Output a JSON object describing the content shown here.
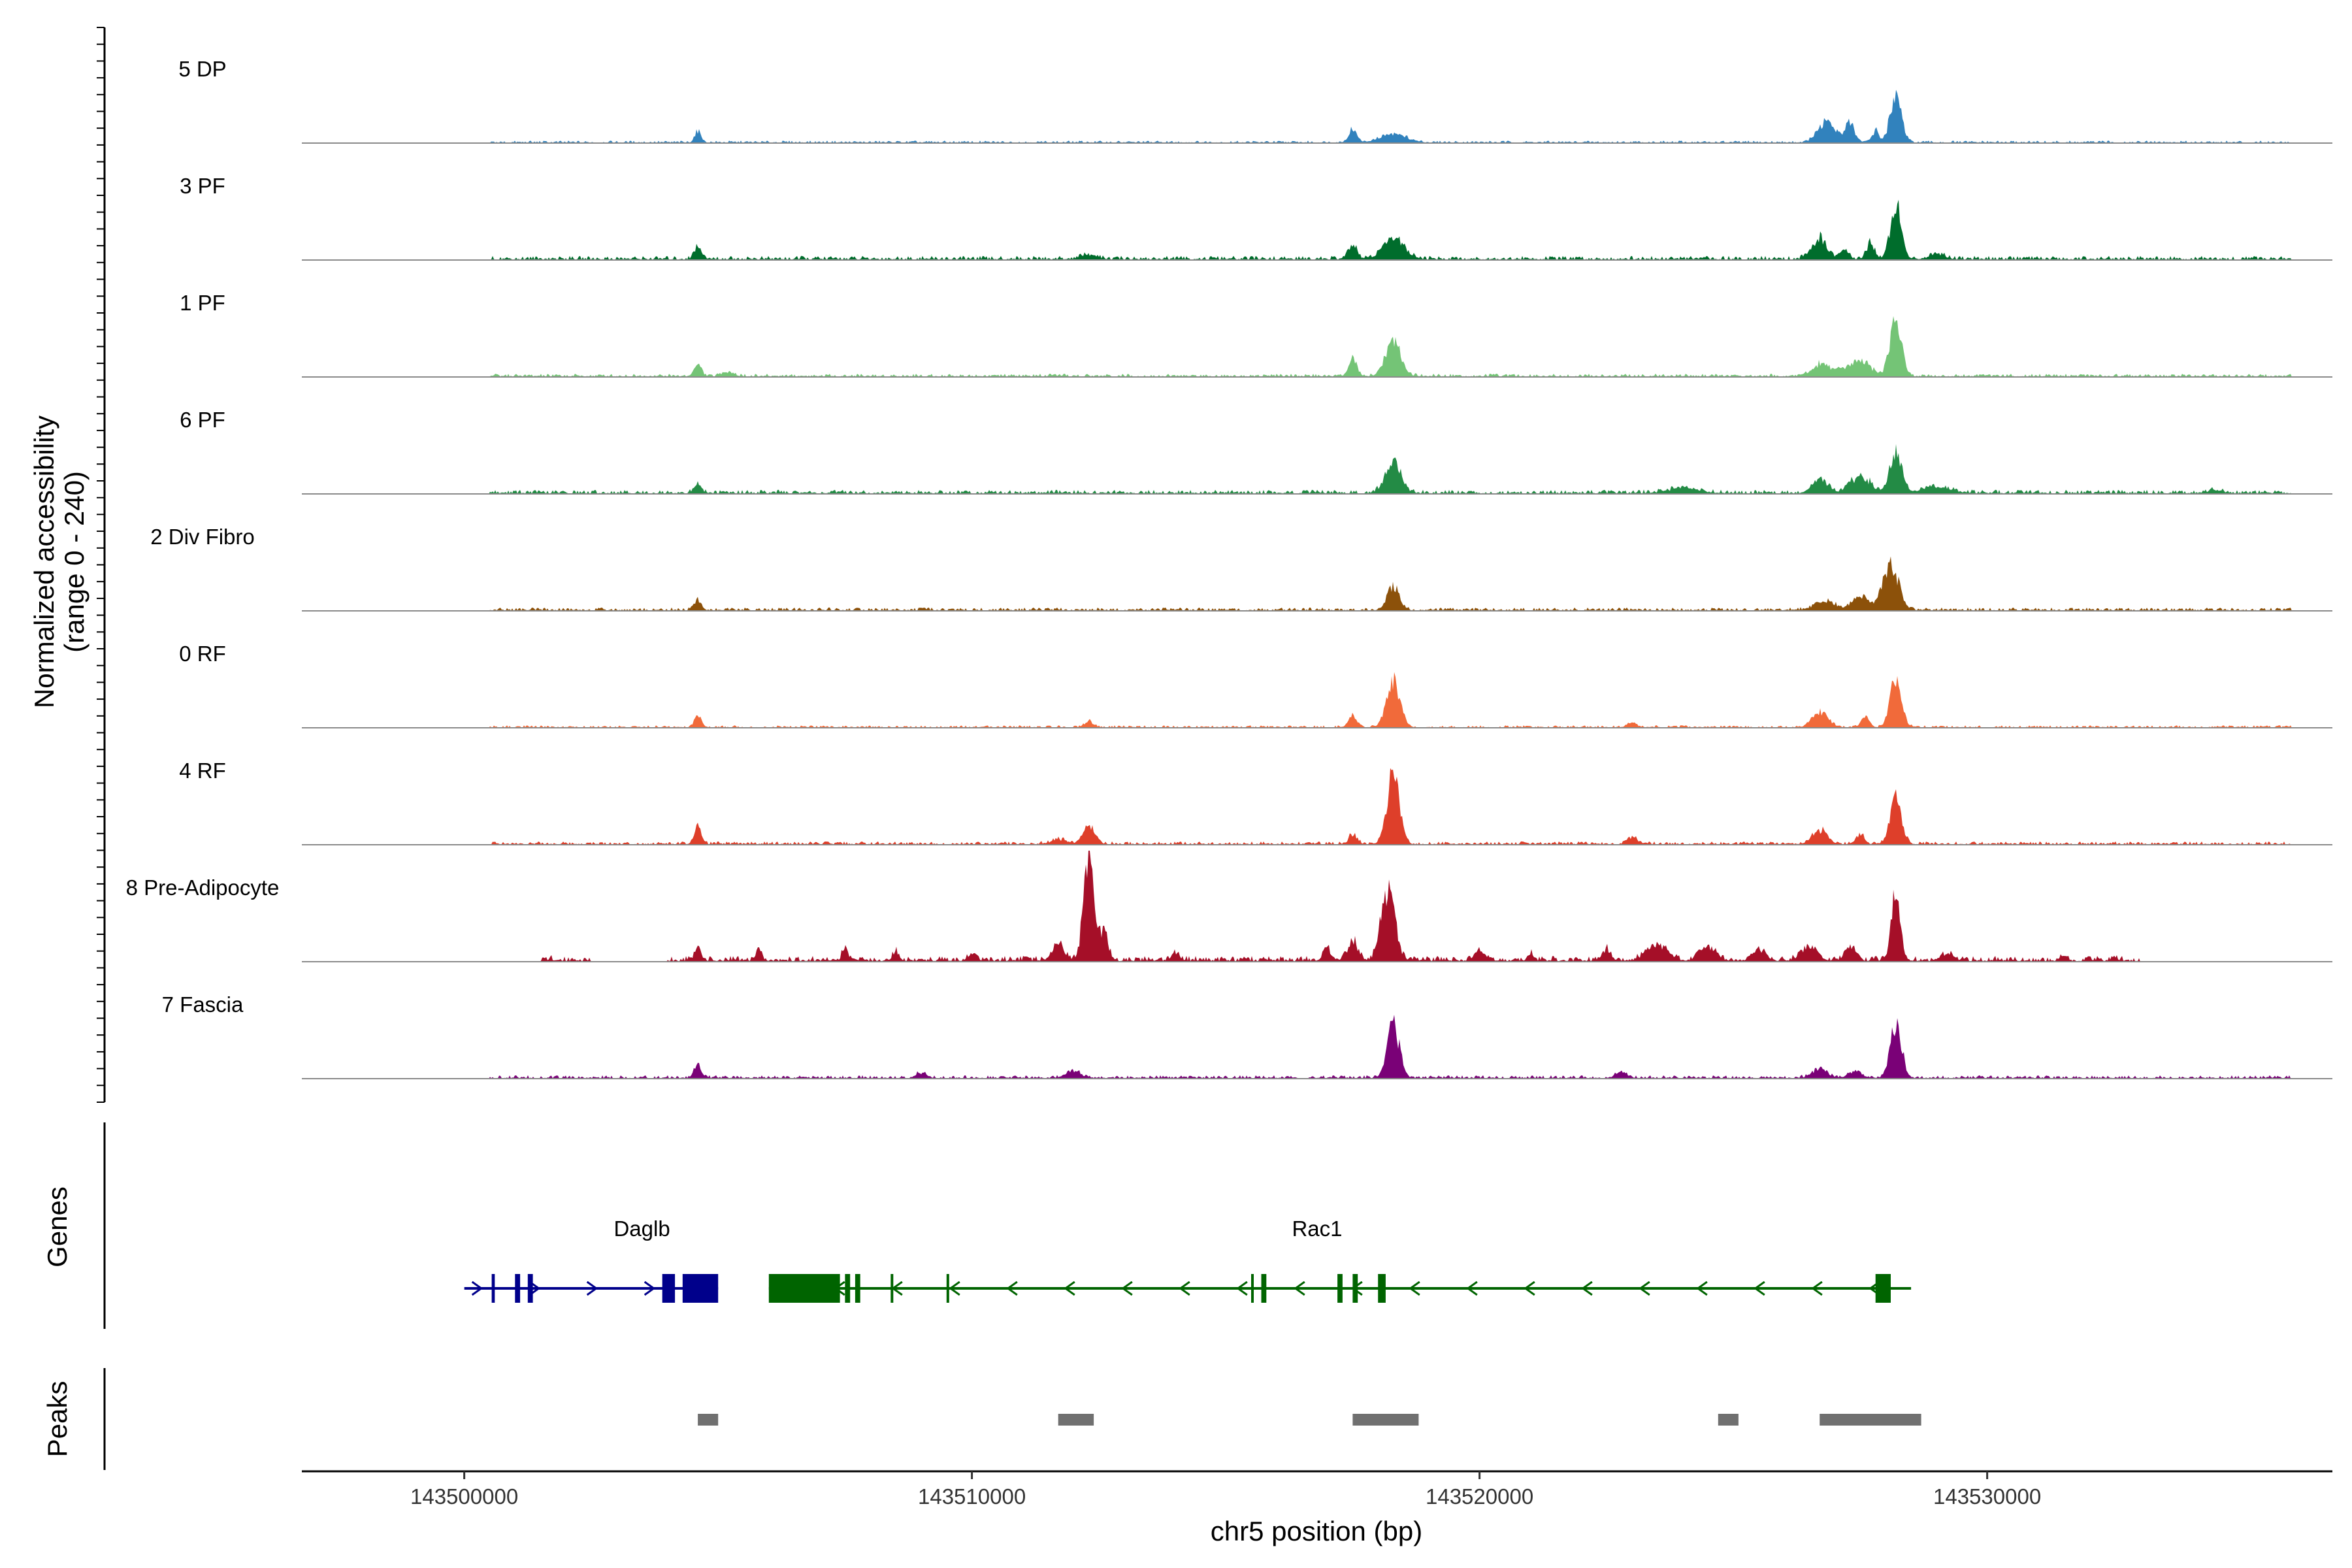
{
  "chart_data": {
    "type": "area",
    "title": "",
    "ylabel": "Normalized accessibility\n(range 0 - 240)",
    "xlabel": "chr5 position (bp)",
    "xlim": [
      143496800,
      143536800
    ],
    "ylim": [
      0,
      240
    ],
    "x_ticks": [
      143500000,
      143510000,
      143520000,
      143530000
    ],
    "x_tick_labels": [
      "143500000",
      "143510000",
      "143520000",
      "143530000"
    ],
    "genes_label": "Genes",
    "peaks_label": "Peaks",
    "tracks": [
      {
        "name": "5 DP",
        "color": "#3182bd",
        "background": [
          [
            143500500,
            143512000,
            3
          ],
          [
            143512000,
            143536000,
            3
          ]
        ],
        "peaks": [
          [
            143504600,
            24,
            60
          ],
          [
            143517500,
            28,
            80
          ],
          [
            143518300,
            18,
            250
          ],
          [
            143526800,
            30,
            150
          ],
          [
            143527300,
            38,
            80
          ],
          [
            143527800,
            25,
            60
          ],
          [
            143528200,
            100,
            110
          ],
          [
            143527000,
            15,
            250
          ]
        ]
      },
      {
        "name": "3 PF",
        "color": "#006d2c",
        "background": [
          [
            143500500,
            143536000,
            5
          ]
        ],
        "peaks": [
          [
            143504600,
            28,
            70
          ],
          [
            143512300,
            10,
            150
          ],
          [
            143517500,
            35,
            80
          ],
          [
            143518300,
            45,
            200
          ],
          [
            143526700,
            45,
            150
          ],
          [
            143527200,
            20,
            80
          ],
          [
            143527700,
            35,
            80
          ],
          [
            143528200,
            115,
            110
          ],
          [
            143529000,
            10,
            150
          ]
        ]
      },
      {
        "name": "1 PF",
        "color": "#74c476",
        "background": [
          [
            143500500,
            143536000,
            4
          ]
        ],
        "peaks": [
          [
            143504600,
            28,
            70
          ],
          [
            143505200,
            10,
            100
          ],
          [
            143517500,
            40,
            80
          ],
          [
            143518300,
            75,
            150
          ],
          [
            143526700,
            20,
            150
          ],
          [
            143527500,
            30,
            200
          ],
          [
            143528200,
            125,
            110
          ],
          [
            143527000,
            10,
            300
          ]
        ]
      },
      {
        "name": "6 PF",
        "color": "#238b45",
        "background": [
          [
            143500500,
            143536000,
            5
          ]
        ],
        "peaks": [
          [
            143504600,
            20,
            70
          ],
          [
            143518300,
            70,
            150
          ],
          [
            143524000,
            10,
            300
          ],
          [
            143526700,
            30,
            150
          ],
          [
            143527500,
            35,
            200
          ],
          [
            143528200,
            95,
            110
          ],
          [
            143529000,
            12,
            300
          ],
          [
            143534500,
            6,
            150
          ]
        ]
      },
      {
        "name": "2 Div Fibro",
        "color": "#8c510a",
        "background": [
          [
            143500500,
            143536000,
            4
          ]
        ],
        "peaks": [
          [
            143504600,
            20,
            70
          ],
          [
            143518300,
            50,
            120
          ],
          [
            143526800,
            20,
            200
          ],
          [
            143527500,
            30,
            150
          ],
          [
            143528100,
            95,
            160
          ]
        ]
      },
      {
        "name": "0 RF",
        "color": "#f16a3a",
        "background": [
          [
            143500500,
            143536000,
            3
          ]
        ],
        "peaks": [
          [
            143504600,
            25,
            70
          ],
          [
            143512300,
            12,
            90
          ],
          [
            143517500,
            25,
            80
          ],
          [
            143518300,
            95,
            130
          ],
          [
            143523000,
            8,
            90
          ],
          [
            143526700,
            35,
            150
          ],
          [
            143527600,
            20,
            80
          ],
          [
            143528200,
            110,
            110
          ]
        ]
      },
      {
        "name": "4 RF",
        "color": "#de3f2a",
        "background": [
          [
            143500500,
            143536000,
            4
          ]
        ],
        "peaks": [
          [
            143504600,
            35,
            70
          ],
          [
            143512300,
            38,
            120
          ],
          [
            143511700,
            10,
            150
          ],
          [
            143517500,
            20,
            80
          ],
          [
            143518300,
            150,
            120
          ],
          [
            143523000,
            15,
            90
          ],
          [
            143526700,
            30,
            150
          ],
          [
            143527500,
            20,
            80
          ],
          [
            143528200,
            100,
            110
          ]
        ]
      },
      {
        "name": "8 Pre-Adipocyte",
        "color": "#a50f28",
        "background": [
          [
            143501500,
            143502500,
            8
          ],
          [
            143504000,
            143533000,
            7
          ]
        ],
        "peaks": [
          [
            143504600,
            30,
            60
          ],
          [
            143505800,
            25,
            60
          ],
          [
            143507500,
            22,
            60
          ],
          [
            143508500,
            18,
            60
          ],
          [
            143510000,
            15,
            60
          ],
          [
            143511700,
            30,
            120
          ],
          [
            143512300,
            220,
            100
          ],
          [
            143512600,
            60,
            80
          ],
          [
            143514000,
            15,
            80
          ],
          [
            143517000,
            25,
            80
          ],
          [
            143517500,
            40,
            100
          ],
          [
            143518200,
            160,
            130
          ],
          [
            143520000,
            20,
            100
          ],
          [
            143521000,
            15,
            60
          ],
          [
            143522500,
            25,
            80
          ],
          [
            143523500,
            35,
            200
          ],
          [
            143524500,
            30,
            150
          ],
          [
            143525500,
            25,
            120
          ],
          [
            143526500,
            30,
            150
          ],
          [
            143527300,
            30,
            100
          ],
          [
            143528200,
            140,
            90
          ],
          [
            143529200,
            15,
            100
          ],
          [
            143531500,
            12,
            60
          ],
          [
            143532500,
            8,
            60
          ]
        ]
      },
      {
        "name": "7 Fascia",
        "color": "#7a0177",
        "background": [
          [
            143500500,
            143536000,
            4
          ]
        ],
        "peaks": [
          [
            143504600,
            28,
            70
          ],
          [
            143509000,
            10,
            100
          ],
          [
            143512000,
            15,
            150
          ],
          [
            143518300,
            110,
            120
          ],
          [
            143522800,
            12,
            120
          ],
          [
            143526700,
            20,
            150
          ],
          [
            143527400,
            15,
            120
          ],
          [
            143528200,
            120,
            110
          ]
        ]
      }
    ],
    "genes": [
      {
        "name": "Daglb",
        "strand": "+",
        "color": "#00008b",
        "start": 143500000,
        "end": 143505000,
        "exons": [
          [
            143500540,
            143500600
          ],
          [
            143501000,
            143501100
          ],
          [
            143501250,
            143501350
          ],
          [
            143503900,
            143504150
          ],
          [
            143504300,
            143505000
          ]
        ],
        "label_x": 143503500
      },
      {
        "name": "Rac1",
        "strand": "-",
        "color": "#006400",
        "start": 143506000,
        "end": 143528500,
        "exons": [
          [
            143506000,
            143507400
          ],
          [
            143507500,
            143507600
          ],
          [
            143507700,
            143507800
          ],
          [
            143508400,
            143508450
          ],
          [
            143509500,
            143509550
          ],
          [
            143515500,
            143515550
          ],
          [
            143515700,
            143515800
          ],
          [
            143517200,
            143517300
          ],
          [
            143517500,
            143517600
          ],
          [
            143518000,
            143518150
          ],
          [
            143527800,
            143528100
          ]
        ],
        "label_x": 143516800
      }
    ],
    "peak_regions": [
      [
        143504600,
        143505000
      ],
      [
        143511700,
        143512400
      ],
      [
        143517500,
        143518800
      ],
      [
        143524700,
        143525100
      ],
      [
        143526700,
        143528700
      ]
    ]
  }
}
